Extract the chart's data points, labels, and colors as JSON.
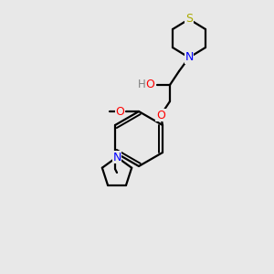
{
  "background_color": "#e8e8e8",
  "bond_color": "#000000",
  "atom_colors": {
    "S": "#aaaa00",
    "N": "#0000ff",
    "O": "#ff0000",
    "H": "#808080",
    "C": "#000000"
  },
  "figsize": [
    3.0,
    3.0
  ],
  "dpi": 100
}
